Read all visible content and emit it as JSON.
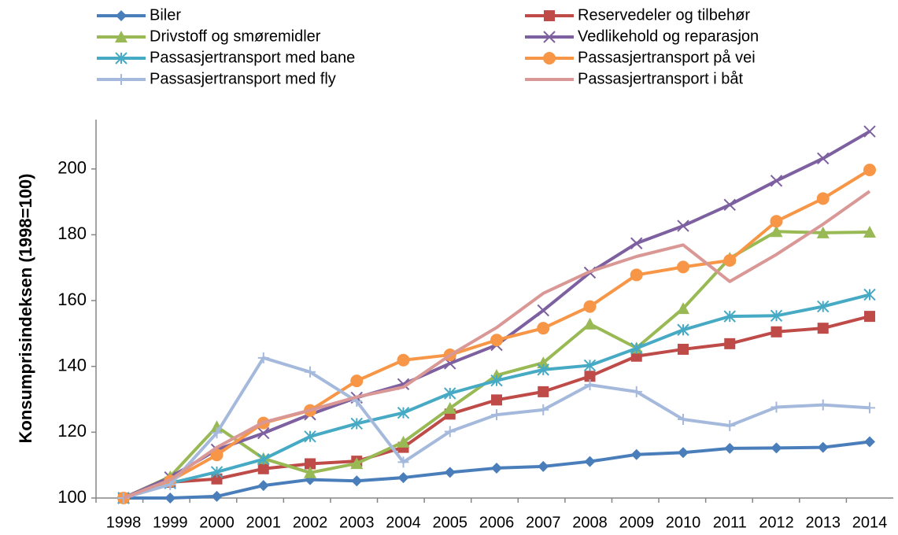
{
  "chart_data": {
    "type": "line",
    "y_label": "Konsumprisindeksen (1998=100)",
    "categories": [
      "1998",
      "1999",
      "2000",
      "2001",
      "2002",
      "2003",
      "2004",
      "2005",
      "2006",
      "2007",
      "2008",
      "2009",
      "2010",
      "2011",
      "2012",
      "2013",
      "2014"
    ],
    "ylim": [
      100,
      215
    ],
    "yticks": [
      100,
      120,
      140,
      160,
      180,
      200
    ],
    "grid": false,
    "legend": "top",
    "series": [
      {
        "name": "Biler",
        "color": "#4a7ebb",
        "marker": "diamond",
        "values": [
          100,
          100,
          100.5,
          103.8,
          105.6,
          105.2,
          106.2,
          107.8,
          109.1,
          109.6,
          111.1,
          113.2,
          113.8,
          115.1,
          115.2,
          115.4,
          117.1
        ]
      },
      {
        "name": "Reservedeler og tilbehør",
        "color": "#be4b48",
        "marker": "square",
        "values": [
          100,
          104.8,
          105.8,
          108.9,
          110.4,
          111.2,
          115.4,
          125.5,
          129.8,
          132.3,
          137,
          143.1,
          145.2,
          146.9,
          150.5,
          151.6,
          155.2
        ]
      },
      {
        "name": "Drivstoff og smøremidler",
        "color": "#98b954",
        "marker": "triangle",
        "values": [
          100,
          106.5,
          121.7,
          112,
          107.7,
          110.5,
          117,
          127.3,
          137.3,
          141.1,
          152.9,
          145.6,
          157.6,
          172.9,
          181,
          180.6,
          180.8
        ]
      },
      {
        "name": "Vedlikehold og reparasjon",
        "color": "#7d60a0",
        "marker": "x",
        "values": [
          100,
          106.3,
          114.7,
          119.7,
          125.4,
          130.5,
          134.6,
          140.9,
          146.5,
          157,
          168.5,
          177.4,
          182.7,
          189.1,
          196.4,
          203.2,
          211.4
        ]
      },
      {
        "name": "Passasjertransport med bane",
        "color": "#46aac5",
        "marker": "asterisk",
        "values": [
          100,
          104.5,
          107.9,
          111.8,
          118.7,
          122.6,
          125.9,
          131.8,
          135.7,
          139,
          140.3,
          145.5,
          151.1,
          155.2,
          155.4,
          158.2,
          161.8
        ]
      },
      {
        "name": "Passasjertransport på vei",
        "color": "#f79646",
        "marker": "circle",
        "values": [
          100,
          105.2,
          113.1,
          122.8,
          126.6,
          135.6,
          141.9,
          143.5,
          148,
          151.6,
          158.2,
          167.8,
          170.2,
          172.2,
          184.1,
          191,
          199.7
        ]
      },
      {
        "name": "Passasjertransport med fly",
        "color": "#a5b9dc",
        "marker": "plus",
        "values": [
          100,
          104.1,
          119.8,
          142.6,
          138.3,
          129.4,
          110.9,
          120.2,
          125.3,
          126.8,
          134.4,
          132.3,
          123.9,
          122,
          127.6,
          128.3,
          127.4
        ]
      },
      {
        "name": "Passasjertransport i båt",
        "color": "#d99795",
        "marker": "none",
        "values": [
          100,
          105.5,
          115.4,
          123,
          126.7,
          130.7,
          133.7,
          143.4,
          151.8,
          162.2,
          168.8,
          173.4,
          176.9,
          165.8,
          174,
          183.2,
          193.2
        ]
      }
    ]
  }
}
